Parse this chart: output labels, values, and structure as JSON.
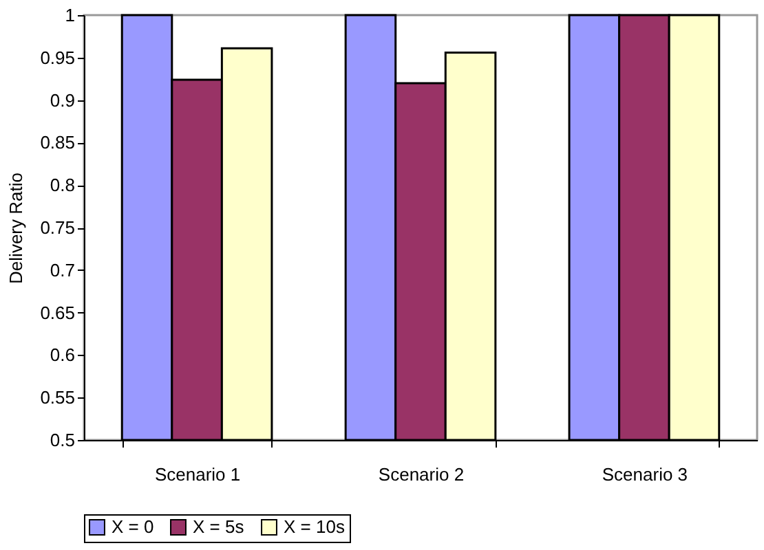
{
  "chart_data": {
    "type": "bar",
    "ylabel": "Delivery Ratio",
    "categories": [
      "Scenario 1",
      "Scenario 2",
      "Scenario 3"
    ],
    "series": [
      {
        "name": "X = 0",
        "color": "#9999ff",
        "values": [
          1,
          1,
          1
        ]
      },
      {
        "name": "X = 5s",
        "color": "#993366",
        "values": [
          0.924,
          0.92,
          1
        ]
      },
      {
        "name": "X = 10s",
        "color": "#ffffcc",
        "values": [
          0.961,
          0.956,
          1
        ]
      }
    ],
    "ylim": [
      0.5,
      1
    ],
    "yticks": [
      0.5,
      0.55,
      0.6,
      0.65,
      0.7,
      0.75,
      0.8,
      0.85,
      0.9,
      0.95,
      1
    ],
    "grid": false,
    "legend": "bottom"
  }
}
